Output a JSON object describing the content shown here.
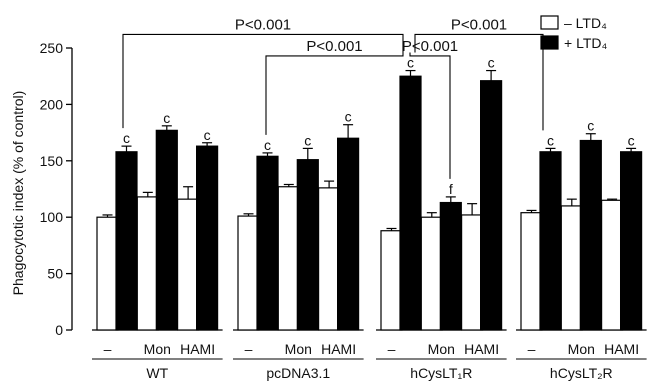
{
  "chart_data": {
    "type": "bar",
    "ylabel": "Phagocytotic index (% of control)",
    "ylim": [
      0,
      250
    ],
    "yticks": [
      0,
      50,
      100,
      150,
      200,
      250
    ],
    "groups": [
      "WT",
      "pcDNA3.1",
      "hCysLT₁R",
      "hCysLT₂R"
    ],
    "conditions": [
      "–",
      "Mon",
      "HAMI"
    ],
    "series": [
      {
        "name": "– LTD₄",
        "color": "#ffffff",
        "stroke": "#000000"
      },
      {
        "name": "+ LTD₄",
        "color": "#000000",
        "stroke": "#000000"
      }
    ],
    "bars": [
      {
        "group": 0,
        "cond": 0,
        "series": 0,
        "value": 100,
        "err": 2,
        "letter": ""
      },
      {
        "group": 0,
        "cond": 0,
        "series": 1,
        "value": 158,
        "err": 5,
        "letter": "c"
      },
      {
        "group": 0,
        "cond": 1,
        "series": 0,
        "value": 118,
        "err": 4,
        "letter": ""
      },
      {
        "group": 0,
        "cond": 1,
        "series": 1,
        "value": 177,
        "err": 4,
        "letter": "c"
      },
      {
        "group": 0,
        "cond": 2,
        "series": 0,
        "value": 116,
        "err": 11,
        "letter": ""
      },
      {
        "group": 0,
        "cond": 2,
        "series": 1,
        "value": 163,
        "err": 3,
        "letter": "c"
      },
      {
        "group": 1,
        "cond": 0,
        "series": 0,
        "value": 101,
        "err": 2,
        "letter": ""
      },
      {
        "group": 1,
        "cond": 0,
        "series": 1,
        "value": 154,
        "err": 3,
        "letter": "c"
      },
      {
        "group": 1,
        "cond": 1,
        "series": 0,
        "value": 127,
        "err": 2,
        "letter": ""
      },
      {
        "group": 1,
        "cond": 1,
        "series": 1,
        "value": 151,
        "err": 10,
        "letter": "c"
      },
      {
        "group": 1,
        "cond": 2,
        "series": 0,
        "value": 126,
        "err": 6,
        "letter": ""
      },
      {
        "group": 1,
        "cond": 2,
        "series": 1,
        "value": 170,
        "err": 12,
        "letter": "c"
      },
      {
        "group": 2,
        "cond": 0,
        "series": 0,
        "value": 88,
        "err": 2,
        "letter": ""
      },
      {
        "group": 2,
        "cond": 0,
        "series": 1,
        "value": 225,
        "err": 5,
        "letter": "c"
      },
      {
        "group": 2,
        "cond": 1,
        "series": 0,
        "value": 100,
        "err": 4,
        "letter": ""
      },
      {
        "group": 2,
        "cond": 1,
        "series": 1,
        "value": 113,
        "err": 5,
        "letter": "f"
      },
      {
        "group": 2,
        "cond": 2,
        "series": 0,
        "value": 102,
        "err": 10,
        "letter": ""
      },
      {
        "group": 2,
        "cond": 2,
        "series": 1,
        "value": 221,
        "err": 9,
        "letter": "c"
      },
      {
        "group": 3,
        "cond": 0,
        "series": 0,
        "value": 104,
        "err": 2,
        "letter": ""
      },
      {
        "group": 3,
        "cond": 0,
        "series": 1,
        "value": 158,
        "err": 3,
        "letter": "c"
      },
      {
        "group": 3,
        "cond": 1,
        "series": 0,
        "value": 110,
        "err": 6,
        "letter": ""
      },
      {
        "group": 3,
        "cond": 1,
        "series": 1,
        "value": 168,
        "err": 6,
        "letter": "c"
      },
      {
        "group": 3,
        "cond": 2,
        "series": 0,
        "value": 115,
        "err": 1,
        "letter": ""
      },
      {
        "group": 3,
        "cond": 2,
        "series": 1,
        "value": 158,
        "err": 3,
        "letter": "c"
      }
    ],
    "significance": [
      {
        "label": "P<0.001",
        "from": {
          "group": 0,
          "cond": 0,
          "series": 1
        },
        "to": {
          "group": 2,
          "cond": 0,
          "series": 1
        },
        "level": 262
      },
      {
        "label": "P<0.001",
        "from": {
          "group": 2,
          "cond": 0,
          "series": 1
        },
        "to": {
          "group": 3,
          "cond": 0,
          "series": 1
        },
        "level": 262
      },
      {
        "label": "P<0.001",
        "from": {
          "group": 1,
          "cond": 0,
          "series": 1
        },
        "to": {
          "group": 2,
          "cond": 0,
          "series": 1
        },
        "level": 243
      },
      {
        "label": "P<0.001",
        "from": {
          "group": 2,
          "cond": 0,
          "series": 1
        },
        "to": {
          "group": 2,
          "cond": 1,
          "series": 1
        },
        "level": 243
      }
    ],
    "legend_position": "top-right"
  }
}
